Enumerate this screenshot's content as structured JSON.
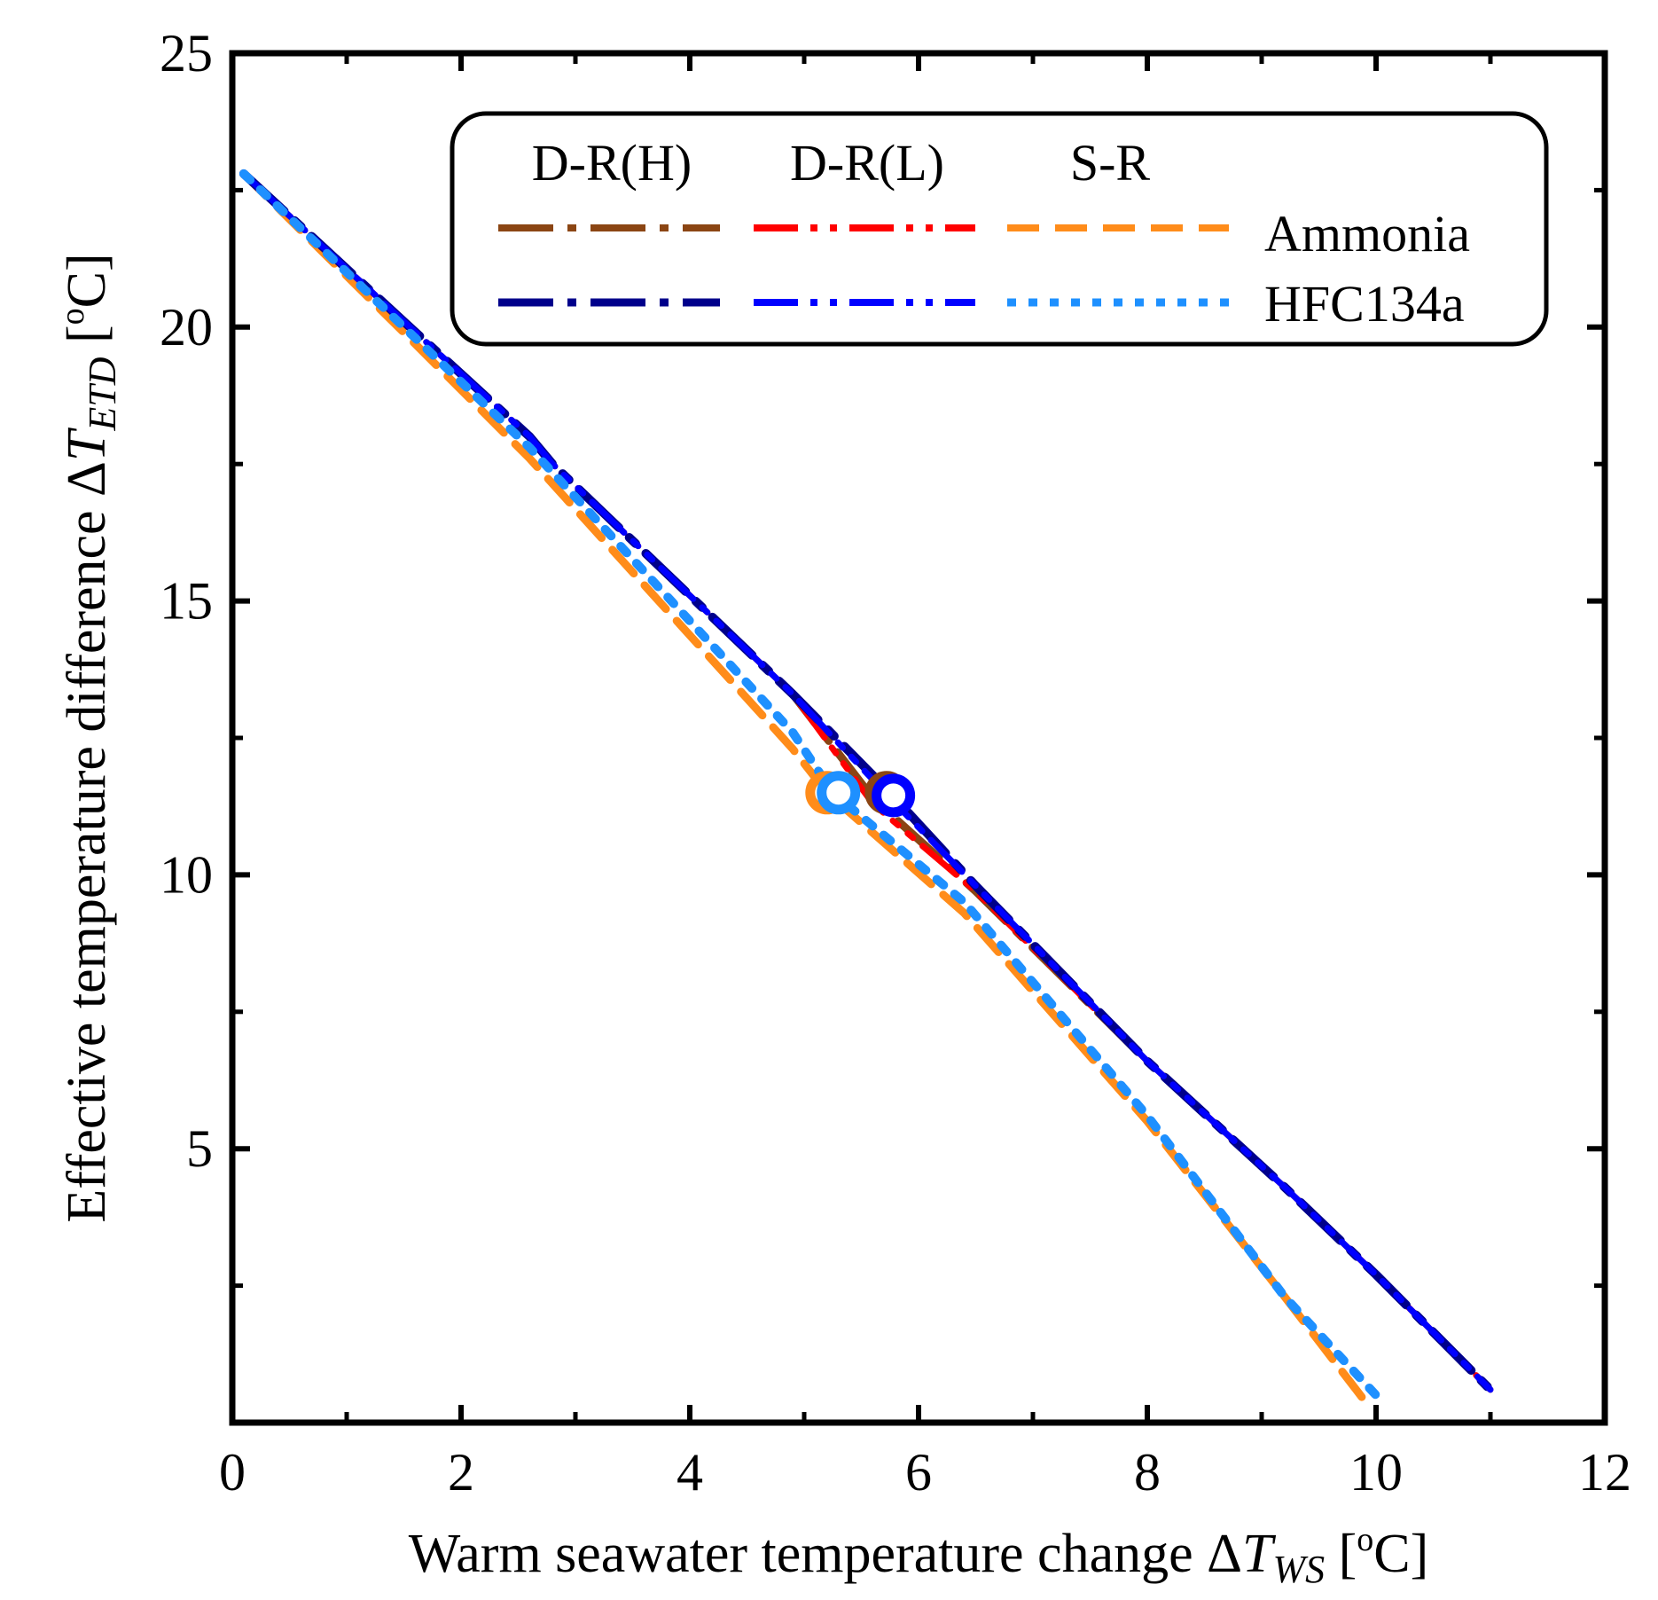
{
  "chart_data": {
    "type": "line",
    "xlabel": {
      "main": "Warm seawater temperature change Δ",
      "var": "T",
      "sub": "WS",
      "unit_open": " [",
      "unit_sup": "o",
      "unit_close": "C]"
    },
    "ylabel": {
      "main": "Effective temperature difference Δ",
      "var": "T",
      "sub": "ETD",
      "unit_open": " [",
      "unit_sup": "o",
      "unit_close": "C]"
    },
    "xlim": [
      0,
      12
    ],
    "ylim": [
      0,
      25
    ],
    "xticks": [
      0,
      2,
      4,
      6,
      8,
      10,
      12
    ],
    "yticks": [
      5,
      10,
      15,
      20,
      25
    ],
    "xtick_labels": [
      "0",
      "2",
      "4",
      "6",
      "8",
      "10",
      "12"
    ],
    "ytick_labels": [
      "5",
      "10",
      "15",
      "20",
      "25"
    ],
    "legend": {
      "column_headers": [
        "D-R(H)",
        "D-R(L)",
        "S-R"
      ],
      "row_labels": [
        "Ammonia",
        "HFC134a"
      ],
      "position": "top-right"
    },
    "series": [
      {
        "name": "D-R(H) Ammonia",
        "color": "#8B4513",
        "x": [
          0.1,
          1.5,
          2.6,
          2.8,
          4.9,
          5.6,
          6.5,
          8.0,
          9.2,
          10.0,
          11.0
        ],
        "y": [
          22.8,
          20.1,
          18.0,
          17.5,
          13.3,
          11.4,
          9.7,
          6.6,
          4.3,
          2.7,
          0.6
        ]
      },
      {
        "name": "D-R(L) Ammonia",
        "color": "#FF0000",
        "x": [
          0.1,
          1.5,
          2.6,
          2.8,
          4.9,
          5.6,
          6.5,
          8.0,
          9.2,
          10.0,
          11.0
        ],
        "y": [
          22.8,
          20.1,
          18.0,
          17.5,
          13.3,
          11.3,
          9.7,
          6.6,
          4.3,
          2.7,
          0.6
        ]
      },
      {
        "name": "S-R Ammonia",
        "color": "#FF8C1A",
        "x": [
          0.1,
          1.5,
          2.6,
          4.9,
          5.2,
          6.4,
          8.0,
          9.2,
          9.9
        ],
        "y": [
          22.8,
          19.9,
          17.6,
          12.3,
          11.5,
          9.3,
          5.5,
          2.3,
          0.4
        ]
      },
      {
        "name": "D-R(H) HFC134a",
        "color": "#00008B",
        "x": [
          0.1,
          1.5,
          2.6,
          2.8,
          4.9,
          5.75,
          6.5,
          8.0,
          9.2,
          10.0,
          11.0
        ],
        "y": [
          22.8,
          20.1,
          18.0,
          17.5,
          13.3,
          11.5,
          9.8,
          6.6,
          4.3,
          2.7,
          0.6
        ]
      },
      {
        "name": "D-R(L) HFC134a",
        "color": "#0000FF",
        "x": [
          0.1,
          1.5,
          2.6,
          2.8,
          4.9,
          5.75,
          6.5,
          8.0,
          9.2,
          10.0,
          11.0
        ],
        "y": [
          22.8,
          20.1,
          18.0,
          17.5,
          13.3,
          11.4,
          9.8,
          6.6,
          4.3,
          2.7,
          0.6
        ]
      },
      {
        "name": "S-R HFC134a",
        "color": "#1E90FF",
        "x": [
          0.1,
          1.5,
          2.6,
          4.9,
          5.25,
          6.4,
          8.0,
          9.2,
          10.0
        ],
        "y": [
          22.8,
          20.0,
          17.8,
          12.6,
          11.5,
          9.5,
          5.6,
          2.3,
          0.5
        ]
      }
    ],
    "markers": [
      {
        "name": "S-R Ammonia point",
        "color": "#FF8C1A",
        "x": 5.2,
        "y": 11.5
      },
      {
        "name": "S-R HFC134a point",
        "color": "#1E90FF",
        "x": 5.3,
        "y": 11.5
      },
      {
        "name": "D-R(H) Ammonia point",
        "color": "#8B4513",
        "x": 5.72,
        "y": 11.5
      },
      {
        "name": "D-R HFC134a point",
        "color": "#0000FF",
        "x": 5.78,
        "y": 11.45
      }
    ]
  }
}
